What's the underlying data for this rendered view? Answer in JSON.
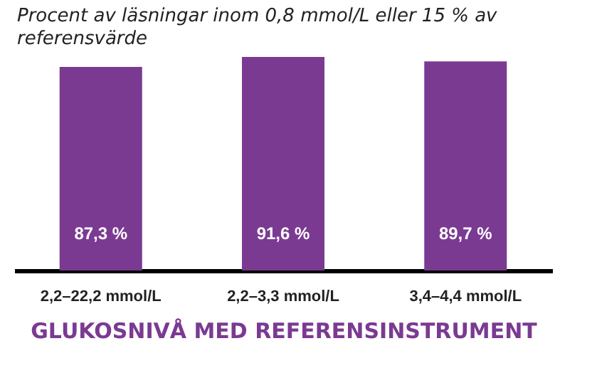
{
  "chart_data": {
    "type": "bar",
    "title": "Procent av läsningar inom 0,8 mmol/L eller 15 % av referensvärde",
    "xlabel": "GLUKOSNIVÅ MED REFERENSINSTRUMENT",
    "categories": [
      "2,2–22,2 mmol/L",
      "2,2–3,3 mmol/L",
      "3,4–4,4 mmol/L"
    ],
    "values": [
      87.3,
      91.6,
      89.7
    ],
    "color": "#7b3a92",
    "value_labels": [
      "87,3 %",
      "91,6 %",
      "89,7 %"
    ]
  }
}
